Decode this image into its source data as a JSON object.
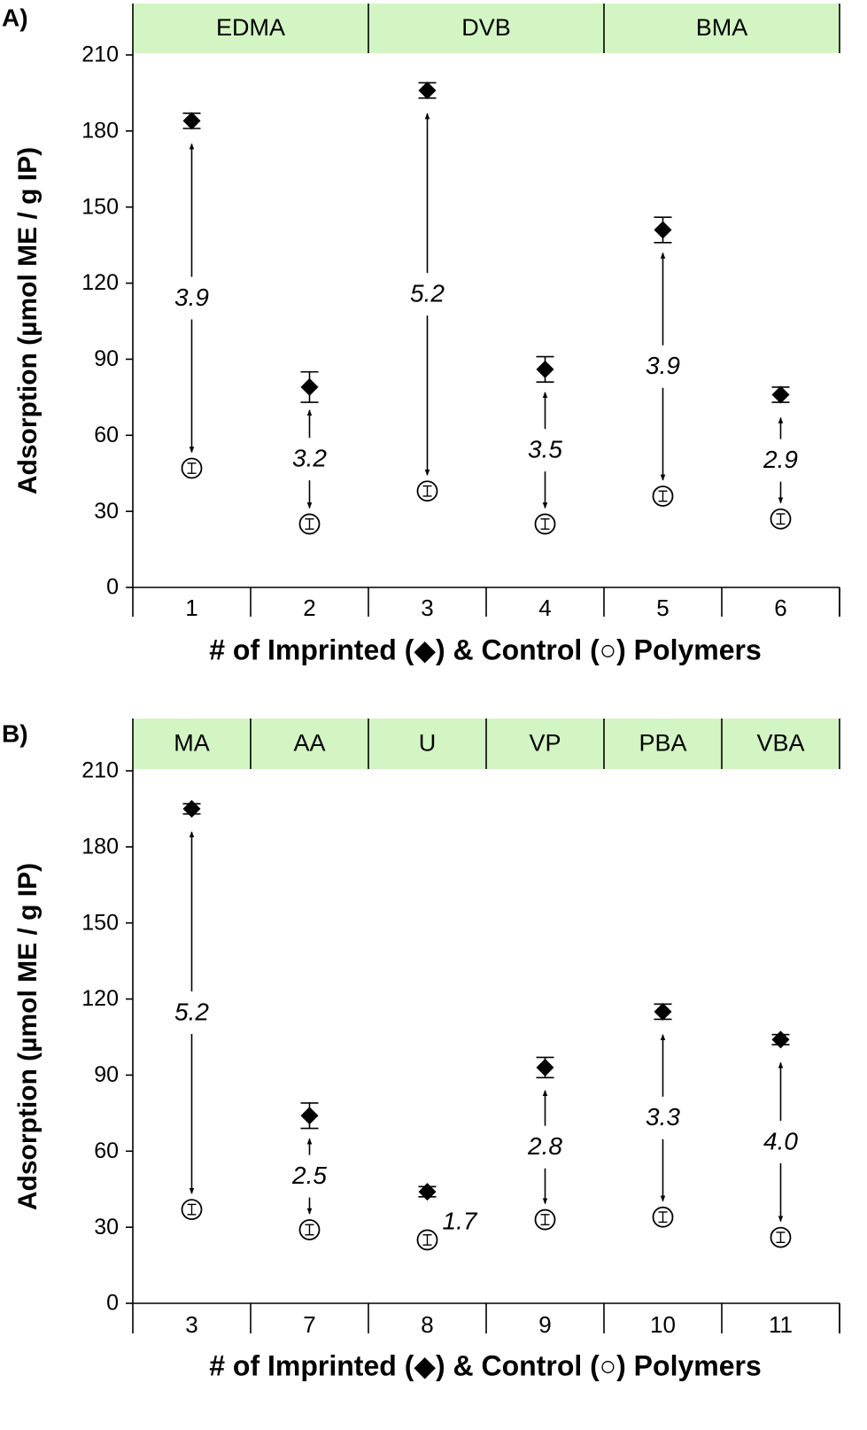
{
  "chart_data": [
    {
      "panel_label": "A)",
      "type": "scatter",
      "ylabel": "Adsorption (µmol ME / g IP)",
      "xlabel": "# of Imprinted (◆) & Control (○) Polymers",
      "ylim": [
        0,
        210
      ],
      "yticks": [
        0,
        30,
        60,
        90,
        120,
        150,
        180,
        210
      ],
      "categories": [
        "1",
        "2",
        "3",
        "4",
        "5",
        "6"
      ],
      "groups": [
        {
          "label": "EDMA",
          "span": 2
        },
        {
          "label": "DVB",
          "span": 2
        },
        {
          "label": "BMA",
          "span": 2
        }
      ],
      "series": [
        {
          "marker": "diamond",
          "values": [
            184,
            79,
            196,
            86,
            141,
            76
          ],
          "errors": [
            3,
            6,
            3,
            5,
            5,
            3
          ]
        },
        {
          "marker": "circle",
          "values": [
            47,
            25,
            38,
            25,
            36,
            27
          ],
          "errors": [
            2,
            2,
            2,
            2,
            2,
            2
          ]
        }
      ],
      "annotations": [
        "3.9",
        "3.2",
        "5.2",
        "3.5",
        "3.9",
        "2.9"
      ],
      "arrow_labels_outside": [
        false,
        false,
        false,
        false,
        false,
        false
      ]
    },
    {
      "panel_label": "B)",
      "type": "scatter",
      "ylabel": "Adsorption (µmol ME / g IP)",
      "xlabel": "# of Imprinted (◆) & Control (○) Polymers",
      "ylim": [
        0,
        210
      ],
      "yticks": [
        0,
        30,
        60,
        90,
        120,
        150,
        180,
        210
      ],
      "categories": [
        "3",
        "7",
        "8",
        "9",
        "10",
        "11"
      ],
      "groups": [
        {
          "label": "MA",
          "span": 1
        },
        {
          "label": "AA",
          "span": 1
        },
        {
          "label": "U",
          "span": 1
        },
        {
          "label": "VP",
          "span": 1
        },
        {
          "label": "PBA",
          "span": 1
        },
        {
          "label": "VBA",
          "span": 1
        }
      ],
      "series": [
        {
          "marker": "diamond",
          "values": [
            195,
            74,
            44,
            93,
            115,
            104
          ],
          "errors": [
            2,
            5,
            2,
            4,
            3,
            2
          ]
        },
        {
          "marker": "circle",
          "values": [
            37,
            29,
            25,
            33,
            34,
            26
          ],
          "errors": [
            2,
            2,
            2,
            2,
            2,
            2
          ]
        }
      ],
      "annotations": [
        "5.2",
        "2.5",
        "1.7",
        "2.8",
        "3.3",
        "4.0"
      ],
      "arrow_labels_outside": [
        false,
        false,
        true,
        false,
        false,
        false
      ]
    }
  ]
}
